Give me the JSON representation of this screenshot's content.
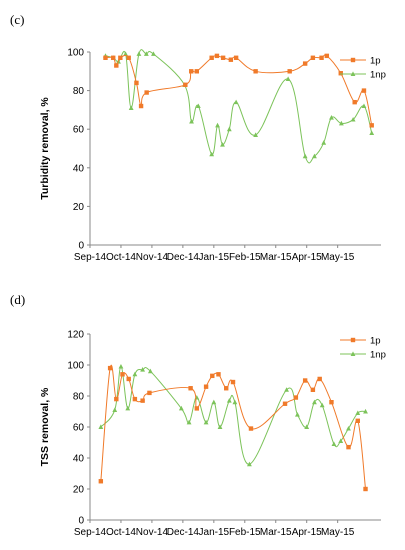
{
  "colors": {
    "p": "#f07a2a",
    "np": "#7cc35a",
    "axis": "#888888"
  },
  "x_ticks": [
    "Sep-14",
    "Oct-14",
    "Nov-14",
    "Dec-14",
    "Jan-15",
    "Feb-15",
    "Mar-15",
    "Apr-15",
    "May-15"
  ],
  "chart_data": [
    {
      "type": "line",
      "panel_label": "(c)",
      "ylabel": "Turbidity removal, %",
      "ylim": [
        0,
        100
      ],
      "yticks": [
        0,
        20,
        40,
        60,
        80,
        100
      ],
      "xlim": [
        0,
        9.4
      ],
      "legend_position": "top-right",
      "series": [
        {
          "name": "1p",
          "marker": "square",
          "points": [
            [
              0.5,
              97
            ],
            [
              0.75,
              97
            ],
            [
              0.85,
              93
            ],
            [
              0.98,
              97
            ],
            [
              1.25,
              97
            ],
            [
              1.5,
              84
            ],
            [
              1.65,
              72
            ],
            [
              1.83,
              79
            ],
            [
              3.08,
              83
            ],
            [
              3.27,
              90
            ],
            [
              3.45,
              90
            ],
            [
              3.93,
              97
            ],
            [
              4.1,
              98
            ],
            [
              4.3,
              97
            ],
            [
              4.55,
              96
            ],
            [
              4.72,
              97
            ],
            [
              5.35,
              90
            ],
            [
              6.45,
              90
            ],
            [
              6.95,
              94
            ],
            [
              7.2,
              97
            ],
            [
              7.48,
              97
            ],
            [
              7.65,
              98
            ],
            [
              8.1,
              89
            ],
            [
              8.55,
              74
            ],
            [
              8.85,
              80
            ],
            [
              9.1,
              62
            ]
          ]
        },
        {
          "name": "1np",
          "marker": "triangle",
          "points": [
            [
              0.5,
              98
            ],
            [
              0.75,
              97
            ],
            [
              0.92,
              95
            ],
            [
              1.15,
              99
            ],
            [
              1.33,
              71
            ],
            [
              1.58,
              99
            ],
            [
              1.82,
              99
            ],
            [
              2.05,
              99
            ],
            [
              3.05,
              83
            ],
            [
              3.28,
              64
            ],
            [
              3.5,
              72
            ],
            [
              3.93,
              47
            ],
            [
              4.12,
              62
            ],
            [
              4.28,
              52
            ],
            [
              4.5,
              60
            ],
            [
              4.72,
              74
            ],
            [
              5.35,
              57
            ],
            [
              6.4,
              86
            ],
            [
              6.95,
              46
            ],
            [
              7.25,
              46
            ],
            [
              7.55,
              53
            ],
            [
              7.8,
              66
            ],
            [
              8.12,
              63
            ],
            [
              8.5,
              65
            ],
            [
              8.85,
              72
            ],
            [
              9.1,
              58
            ]
          ]
        }
      ]
    },
    {
      "type": "line",
      "panel_label": "(d)",
      "ylabel": "TSS removal, %",
      "ylim": [
        0,
        120
      ],
      "yticks": [
        0,
        20,
        40,
        60,
        80,
        100,
        120
      ],
      "xlim": [
        0,
        9.4
      ],
      "legend_position": "top-right",
      "series": [
        {
          "name": "1p",
          "marker": "square",
          "points": [
            [
              0.35,
              25
            ],
            [
              0.65,
              98
            ],
            [
              0.85,
              78
            ],
            [
              1.05,
              94
            ],
            [
              1.25,
              91
            ],
            [
              1.45,
              78
            ],
            [
              1.7,
              77
            ],
            [
              1.92,
              82
            ],
            [
              3.25,
              85
            ],
            [
              3.45,
              72
            ],
            [
              3.75,
              86
            ],
            [
              3.95,
              93
            ],
            [
              4.15,
              94
            ],
            [
              4.4,
              85
            ],
            [
              4.62,
              89
            ],
            [
              5.2,
              59
            ],
            [
              6.3,
              75
            ],
            [
              6.65,
              79
            ],
            [
              6.95,
              90
            ],
            [
              7.2,
              84
            ],
            [
              7.42,
              91
            ],
            [
              7.8,
              76
            ],
            [
              8.35,
              47
            ],
            [
              8.65,
              64
            ],
            [
              8.9,
              20
            ]
          ]
        },
        {
          "name": "1np",
          "marker": "triangle",
          "points": [
            [
              0.35,
              60
            ],
            [
              0.8,
              71
            ],
            [
              1.0,
              99
            ],
            [
              1.22,
              72
            ],
            [
              1.45,
              94
            ],
            [
              1.7,
              97
            ],
            [
              1.95,
              96
            ],
            [
              2.95,
              72
            ],
            [
              3.2,
              63
            ],
            [
              3.45,
              79
            ],
            [
              3.75,
              63
            ],
            [
              4.0,
              76
            ],
            [
              4.2,
              60
            ],
            [
              4.5,
              77
            ],
            [
              4.68,
              76
            ],
            [
              5.15,
              36
            ],
            [
              6.35,
              84
            ],
            [
              6.7,
              68
            ],
            [
              7.0,
              60
            ],
            [
              7.25,
              76
            ],
            [
              7.5,
              74
            ],
            [
              7.88,
              49
            ],
            [
              8.1,
              51
            ],
            [
              8.35,
              59
            ],
            [
              8.65,
              69
            ],
            [
              8.9,
              70
            ]
          ]
        }
      ]
    }
  ]
}
